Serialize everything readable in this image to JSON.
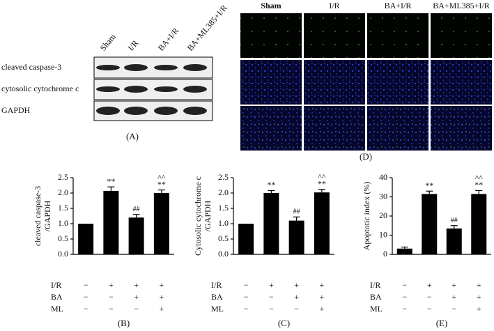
{
  "blot": {
    "columns": [
      "Sham",
      "I/R",
      "BA+I/R",
      "BA+ML385+I/R"
    ],
    "rows": [
      "cleaved caspase-3",
      "cytosolic cytochrome c",
      "GAPDH"
    ],
    "label": "(A)"
  },
  "imaging": {
    "columns": [
      "Sham",
      "I/R",
      "BA+I/R",
      "BA+ML385+I/R"
    ],
    "label": "(D)"
  },
  "conditions": [
    {
      "name": "I/R",
      "signs": [
        "−",
        "+",
        "+",
        "+"
      ]
    },
    {
      "name": "BA",
      "signs": [
        "−",
        "−",
        "+",
        "+"
      ]
    },
    {
      "name": "ML",
      "signs": [
        "−",
        "−",
        "−",
        "+"
      ]
    }
  ],
  "chart_data": [
    {
      "type": "bar",
      "panel": "(B)",
      "ylabel": [
        "cleaved caspase-3",
        "/GAPDH"
      ],
      "values": [
        1.0,
        2.07,
        1.2,
        2.0
      ],
      "errors": [
        0,
        0.13,
        0.1,
        0.1
      ],
      "marks": [
        null,
        "**",
        "##",
        "**"
      ],
      "marks_top": [
        null,
        null,
        null,
        "^^"
      ],
      "color": "#000000",
      "ylim": [
        0,
        2.5
      ],
      "yticks": [
        {
          "value": 0,
          "label": "0.0"
        },
        {
          "value": 0.5,
          "label": "0.5"
        },
        {
          "value": 1,
          "label": "1.0"
        },
        {
          "value": 1.5,
          "label": "1.5"
        },
        {
          "value": 2,
          "label": "2.0"
        },
        {
          "value": 2.5,
          "label": "2.5"
        }
      ]
    },
    {
      "type": "bar",
      "panel": "(C)",
      "ylabel": [
        "Cytosolic cytochrome c",
        "/GAPDH"
      ],
      "values": [
        1.0,
        2.0,
        1.1,
        2.02
      ],
      "errors": [
        0,
        0.08,
        0.12,
        0.1
      ],
      "marks": [
        null,
        "**",
        "##",
        "**"
      ],
      "marks_top": [
        null,
        null,
        null,
        "^^"
      ],
      "color": "#000000",
      "ylim": [
        0,
        2.5
      ],
      "yticks": [
        {
          "value": 0,
          "label": "0.0"
        },
        {
          "value": 0.5,
          "label": "0.5"
        },
        {
          "value": 1,
          "label": "1.0"
        },
        {
          "value": 1.5,
          "label": "1.5"
        },
        {
          "value": 2,
          "label": "2.0"
        },
        {
          "value": 2.5,
          "label": "2.5"
        }
      ]
    },
    {
      "type": "bar",
      "panel": "(E)",
      "ylabel": [
        "Apoptotic index (%)"
      ],
      "values": [
        3,
        31.5,
        13.5,
        31.5
      ],
      "errors": [
        0.8,
        1.5,
        1.5,
        1.8
      ],
      "marks": [
        null,
        "**",
        "##",
        "**"
      ],
      "marks_top": [
        null,
        null,
        null,
        "^^"
      ],
      "color": "#000000",
      "ylim": [
        0,
        40
      ],
      "yticks": [
        0,
        10,
        20,
        30,
        40
      ]
    }
  ]
}
